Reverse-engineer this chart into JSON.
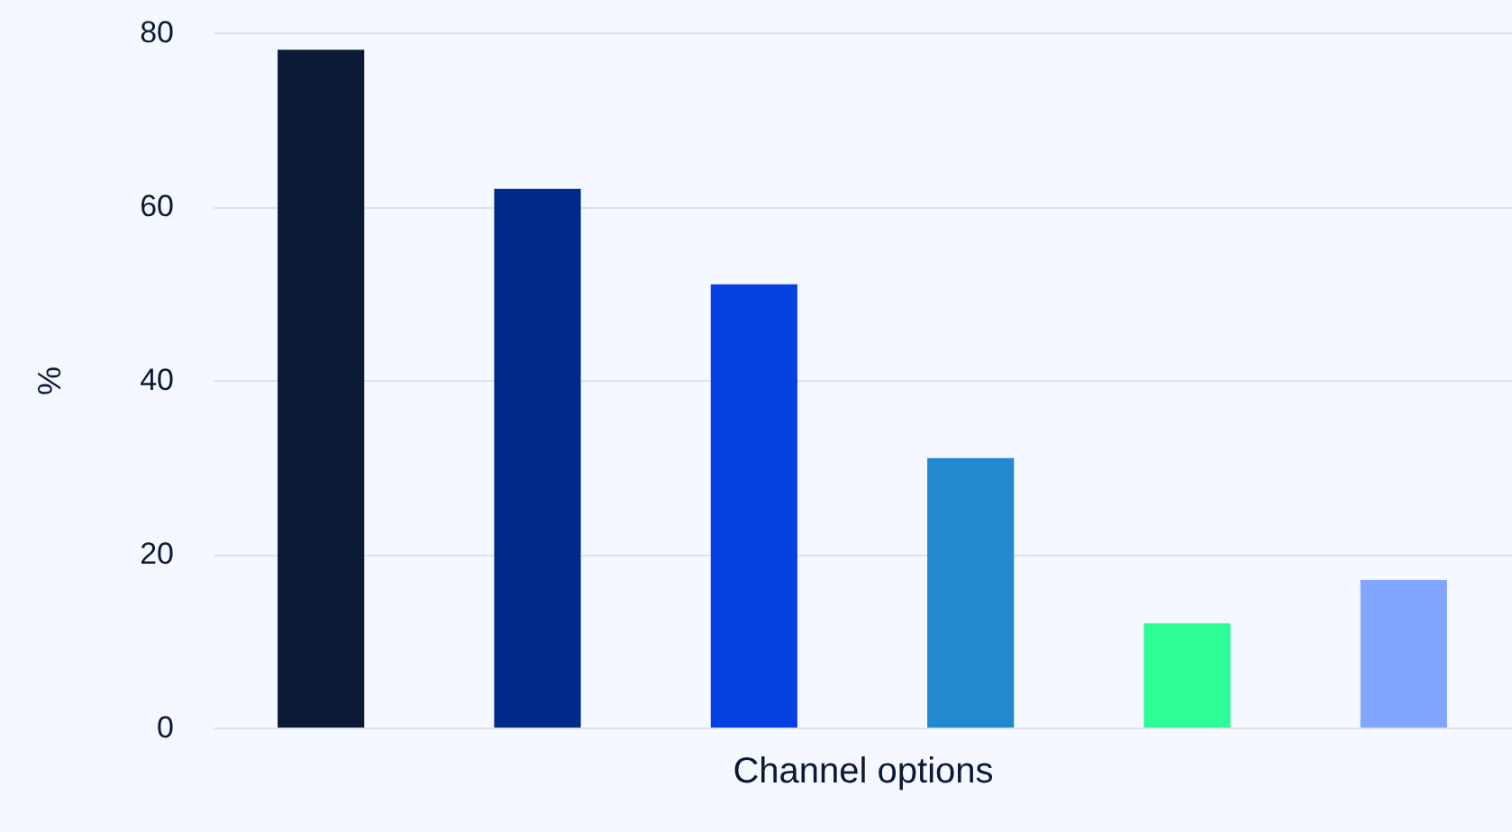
{
  "chart_data": {
    "type": "bar",
    "xlabel": "Channel options",
    "ylabel": "%",
    "categories": [
      null,
      null,
      null,
      null,
      null,
      null
    ],
    "values": [
      78,
      62,
      51,
      31,
      12,
      17
    ],
    "colors": [
      "#0a1a36",
      "#002a8a",
      "#0540e0",
      "#2288d0",
      "#2efc96",
      "#82a6ff"
    ],
    "ylim": [
      0,
      80
    ],
    "yticks": [
      0,
      20,
      40,
      60,
      80
    ],
    "grid": "y",
    "tick_labels": "y"
  }
}
